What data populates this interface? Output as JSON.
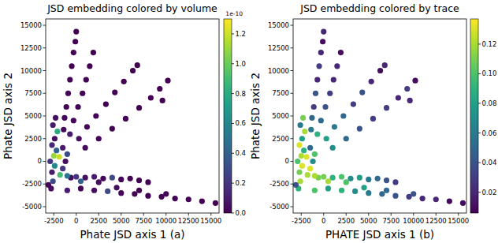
{
  "chart_data": [
    {
      "type": "scatter",
      "title": "JSD embedding colored by volume",
      "x_label": "Phate JSD axis 1 (a)",
      "y_label": "Phate JSD axis 2",
      "x": [
        -2800,
        -2600,
        -2700,
        -2400,
        -2900,
        -2500,
        -2200,
        -2700,
        -2400,
        -2100,
        -2600,
        -2300,
        -1800,
        -1500,
        -1200,
        -1900,
        -1000,
        -1500,
        -600,
        -3100,
        -1400,
        -1300,
        -1100,
        -900,
        -700,
        -500,
        -300,
        -100,
        0,
        -700,
        -300,
        200,
        700,
        1100,
        1500,
        1900,
        300,
        1200,
        2200,
        3300,
        4300,
        5300,
        6300,
        6800,
        1000,
        2500,
        4000,
        5500,
        7000,
        8300,
        9300,
        10200,
        9600,
        -1000,
        0,
        1000,
        2000,
        3000,
        4000,
        5000,
        6000,
        7000,
        8000,
        2500,
        500,
        -1000,
        500,
        2000,
        3500,
        5000,
        6500,
        8000,
        9500,
        11000,
        12500,
        14000,
        15500,
        4500,
        7000,
        10000
      ],
      "y": [
        -3000,
        -2200,
        -1200,
        -500,
        0,
        600,
        1200,
        1800,
        2500,
        3300,
        4000,
        4800,
        -1500,
        -800,
        0,
        500,
        800,
        1500,
        -1800,
        -2600,
        3500,
        4800,
        6000,
        7500,
        9000,
        10500,
        12000,
        13200,
        14300,
        3000,
        4500,
        6000,
        7500,
        9000,
        10500,
        12000,
        2500,
        3800,
        5000,
        6300,
        7600,
        8800,
        10000,
        10600,
        1500,
        2500,
        3600,
        4700,
        5900,
        7000,
        8000,
        8900,
        6700,
        -1600,
        -1700,
        -1800,
        -1700,
        -1900,
        -1800,
        -2000,
        -1900,
        -2100,
        -2300,
        -2300,
        -2200,
        -3200,
        -3000,
        -3200,
        -3300,
        -3500,
        -3600,
        -3800,
        -3900,
        -4100,
        -4200,
        -4400,
        -4600,
        -2900,
        -3200,
        -3600
      ],
      "color_values": [
        0.05,
        0.3,
        0.1,
        0.6,
        0.2,
        1.1,
        0.4,
        0.15,
        0.05,
        0.8,
        0.1,
        0.05,
        0.9,
        0.2,
        0.05,
        1.2,
        0.3,
        0.1,
        0.05,
        0.02,
        0.03,
        0.02,
        0.01,
        0.02,
        0.01,
        0,
        0.01,
        0,
        0,
        0.1,
        0.02,
        0.01,
        0,
        0.01,
        0,
        0,
        0.05,
        0.02,
        0.01,
        0,
        0.01,
        0,
        0,
        0,
        0.04,
        0.02,
        0.01,
        0.01,
        0,
        0,
        0,
        0,
        0,
        0.5,
        0.2,
        0.05,
        0.1,
        0.02,
        0.3,
        0.01,
        0.02,
        0,
        0.01,
        0.05,
        0.4,
        0.1,
        0.02,
        0.05,
        0.3,
        0.02,
        0.01,
        0,
        0.01,
        0,
        0,
        0,
        0,
        0.05,
        0,
        0.01
      ],
      "colorbar": {
        "range": [
          0,
          1.3
        ],
        "offset_label": "1e-10",
        "ticks": [
          {
            "value": 0,
            "label": "0.0"
          },
          {
            "value": 0.2,
            "label": "0.2"
          },
          {
            "value": 0.4,
            "label": "0.4"
          },
          {
            "value": 0.6,
            "label": "0.6"
          },
          {
            "value": 0.8,
            "label": "0.8"
          },
          {
            "value": 1.0,
            "label": "1.0"
          },
          {
            "value": 1.2,
            "label": "1.2"
          }
        ]
      },
      "xlim": [
        -3400,
        15900
      ],
      "ylim": [
        -5700,
        15700
      ],
      "xticks": [
        -2500,
        0,
        2500,
        5000,
        7500,
        10000,
        12500,
        15000
      ],
      "yticks": [
        -5000,
        -2500,
        0,
        2500,
        5000,
        7500,
        10000,
        12500,
        15000
      ],
      "grid": false,
      "marker": "circle"
    },
    {
      "type": "scatter",
      "title": "JSD embedding colored by trace",
      "x_label": "PHATE JSD axis 1 (b)",
      "y_label": "Phate JSD axis 2",
      "x": [
        -2800,
        -2600,
        -2700,
        -2400,
        -2900,
        -2500,
        -2200,
        -2700,
        -2400,
        -2100,
        -2600,
        -2300,
        -1800,
        -1500,
        -1200,
        -1900,
        -1000,
        -1500,
        -600,
        -3100,
        -1400,
        -1300,
        -1100,
        -900,
        -700,
        -500,
        -300,
        -100,
        0,
        -700,
        -300,
        200,
        700,
        1100,
        1500,
        1900,
        300,
        1200,
        2200,
        3300,
        4300,
        5300,
        6300,
        6800,
        1000,
        2500,
        4000,
        5500,
        7000,
        8300,
        9300,
        10200,
        9600,
        -1000,
        0,
        1000,
        2000,
        3000,
        4000,
        5000,
        6000,
        7000,
        8000,
        2500,
        500,
        -1000,
        500,
        2000,
        3500,
        5000,
        6500,
        8000,
        9500,
        11000,
        12500,
        14000,
        15500,
        4500,
        7000,
        10000
      ],
      "y": [
        -3000,
        -2200,
        -1200,
        -500,
        0,
        600,
        1200,
        1800,
        2500,
        3300,
        4000,
        4800,
        -1500,
        -800,
        0,
        500,
        800,
        1500,
        -1800,
        -2600,
        3500,
        4800,
        6000,
        7500,
        9000,
        10500,
        12000,
        13200,
        14300,
        3000,
        4500,
        6000,
        7500,
        9000,
        10500,
        12000,
        2500,
        3800,
        5000,
        6300,
        7600,
        8800,
        10000,
        10600,
        1500,
        2500,
        3600,
        4700,
        5900,
        7000,
        8000,
        8900,
        6700,
        -1600,
        -1700,
        -1800,
        -1700,
        -1900,
        -1800,
        -2000,
        -1900,
        -2100,
        -2300,
        -2300,
        -2200,
        -3200,
        -3000,
        -3200,
        -3300,
        -3500,
        -3600,
        -3800,
        -3900,
        -4100,
        -4200,
        -4400,
        -4600,
        -2900,
        -3200,
        -3600
      ],
      "color_values": [
        0.09,
        0.12,
        0.11,
        0.13,
        0.1,
        0.12,
        0.09,
        0.13,
        0.08,
        0.12,
        0.06,
        0.11,
        0.12,
        0.13,
        0.07,
        0.13,
        0.1,
        0.05,
        0.11,
        0.04,
        0.06,
        0.05,
        0.03,
        0.04,
        0.02,
        0.03,
        0.02,
        0.01,
        0.02,
        0.09,
        0.05,
        0.04,
        0.03,
        0.02,
        0.02,
        0.01,
        0.08,
        0.06,
        0.05,
        0.03,
        0.04,
        0.02,
        0.01,
        0.02,
        0.07,
        0.05,
        0.04,
        0.03,
        0.03,
        0.02,
        0.03,
        0.01,
        0.02,
        0.12,
        0.11,
        0.09,
        0.1,
        0.07,
        0.08,
        0.06,
        0.05,
        0.04,
        0.03,
        0.1,
        0.12,
        0.1,
        0.08,
        0.09,
        0.07,
        0.06,
        0.05,
        0.04,
        0.03,
        0.02,
        0.02,
        0.01,
        0.01,
        0.08,
        0.05,
        0.04
      ],
      "colorbar": {
        "range": [
          0.006,
          0.137
        ],
        "ticks": [
          {
            "value": 0.02,
            "label": "0.02"
          },
          {
            "value": 0.04,
            "label": "0.04"
          },
          {
            "value": 0.06,
            "label": "0.06"
          },
          {
            "value": 0.08,
            "label": "0.08"
          },
          {
            "value": 0.1,
            "label": "0.10"
          },
          {
            "value": 0.12,
            "label": "0.12"
          }
        ]
      },
      "xlim": [
        -3400,
        15900
      ],
      "ylim": [
        -5700,
        15700
      ],
      "xticks": [
        -2500,
        0,
        2500,
        5000,
        7500,
        10000,
        12500,
        15000
      ],
      "yticks": [
        -5000,
        -2500,
        0,
        2500,
        5000,
        7500,
        10000,
        12500,
        15000
      ],
      "grid": false,
      "marker": "circle"
    }
  ]
}
